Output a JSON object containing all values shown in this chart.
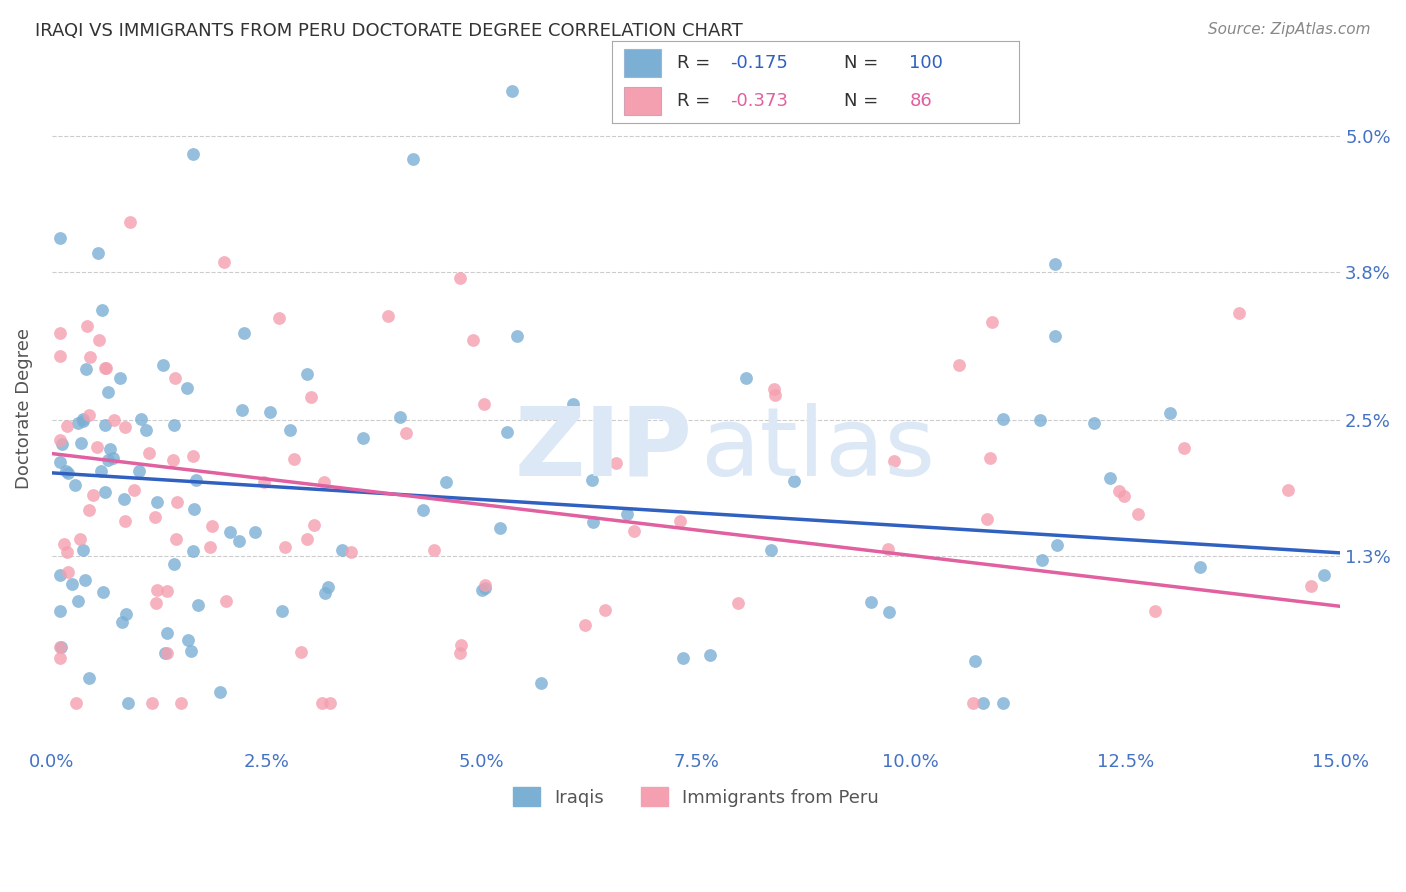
{
  "title": "IRAQI VS IMMIGRANTS FROM PERU DOCTORATE DEGREE CORRELATION CHART",
  "source": "Source: ZipAtlas.com",
  "ylabel": "Doctorate Degree",
  "ytick_labels": [
    "1.3%",
    "2.5%",
    "3.8%",
    "5.0%"
  ],
  "ytick_values": [
    0.013,
    0.025,
    0.038,
    0.05
  ],
  "xlim": [
    0.0,
    0.15
  ],
  "ylim": [
    -0.004,
    0.056
  ],
  "legend_label1": "Iraqis",
  "legend_label2": "Immigrants from Peru",
  "color_iraqi": "#7bafd4",
  "color_peru": "#f4a0b0",
  "color_iraqi_line": "#3060c0",
  "color_peru_line": "#e060a0",
  "watermark_color": "#dce8f5",
  "background_color": "#ffffff",
  "grid_color": "#cccccc",
  "title_color": "#333333",
  "axis_label_color": "#4472c4",
  "r_value_iraqi": -0.175,
  "n_iraqi": 100,
  "r_value_peru": -0.373,
  "n_peru": 86
}
